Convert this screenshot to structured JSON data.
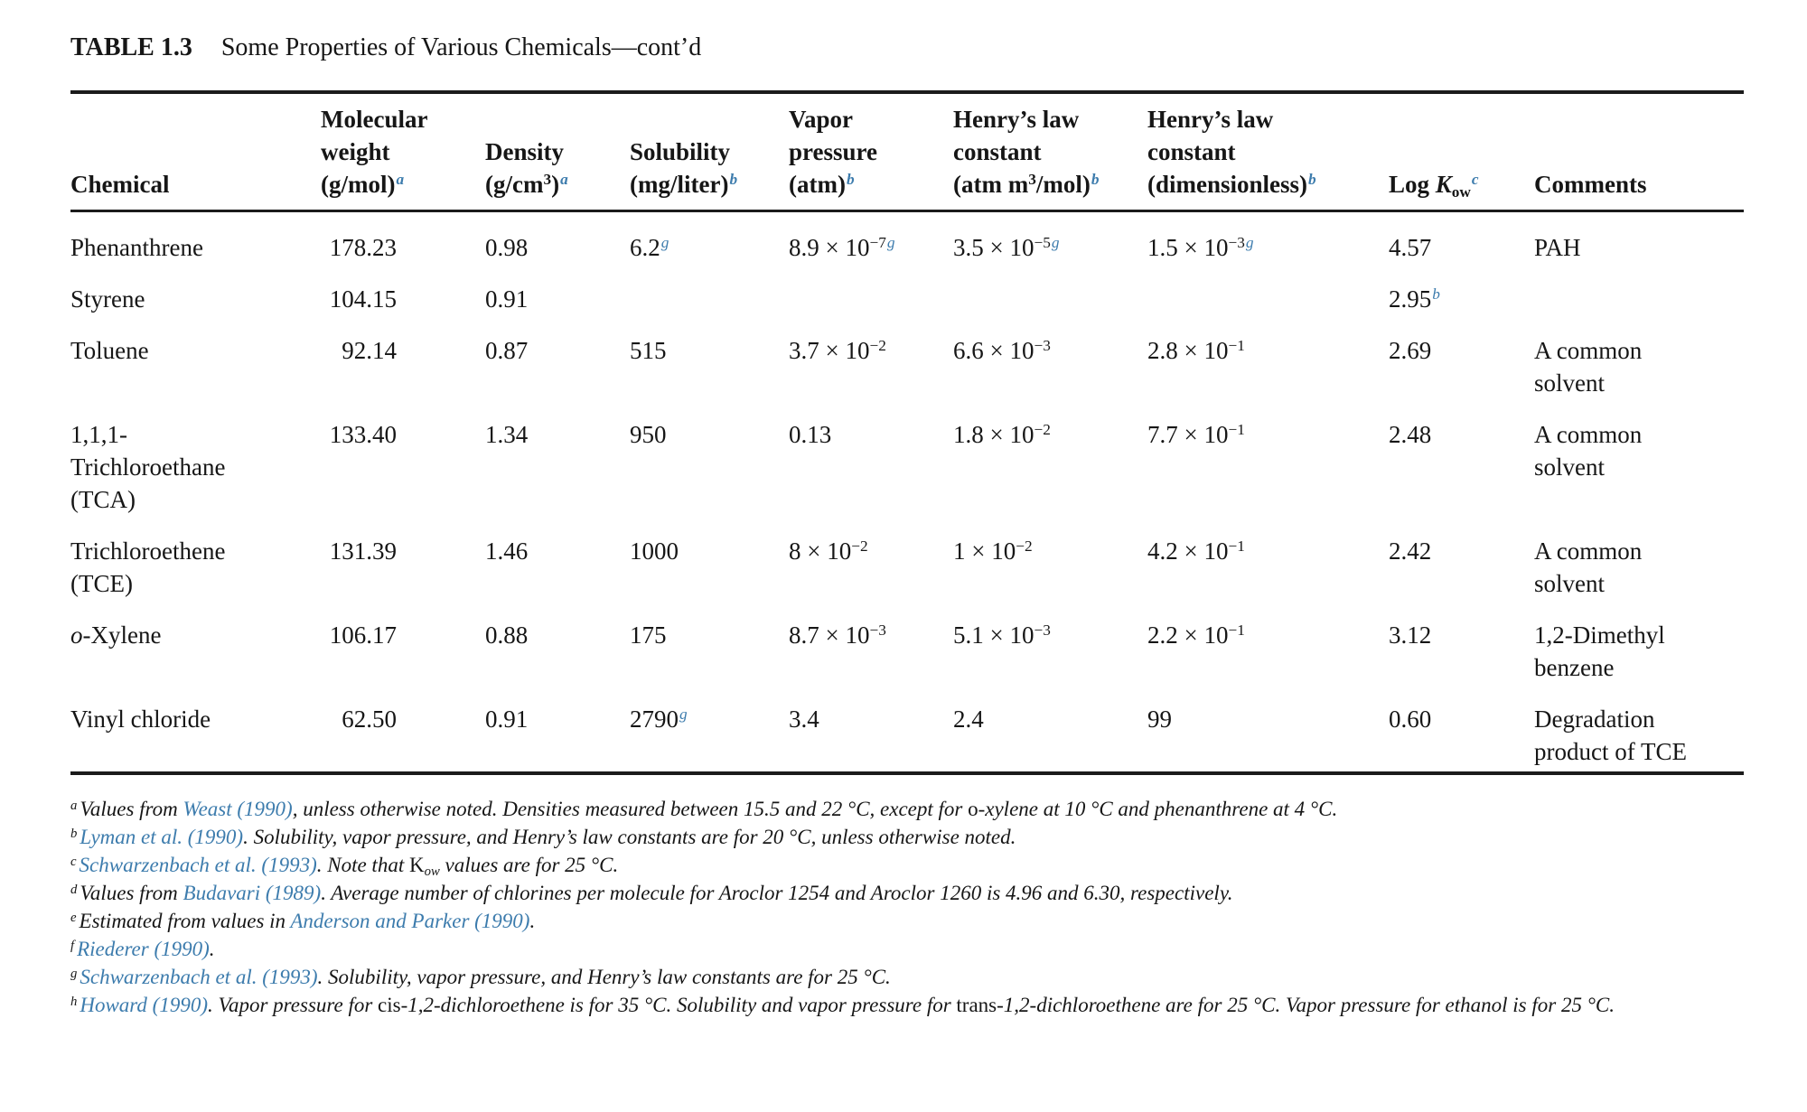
{
  "colors": {
    "accent": "#3d7cad",
    "rule": "#1b1b1b",
    "text": "#161616",
    "background": "#ffffff"
  },
  "title": {
    "label": "TABLE 1.3",
    "text": "Some Properties of Various Chemicals—cont’d"
  },
  "table": {
    "columns": [
      {
        "key": "chemical",
        "header": "Chemical"
      },
      {
        "key": "mw",
        "header": "Molecular\nweight\n(g/mol)~{a}"
      },
      {
        "key": "density",
        "header": "Density\n(g/cm^{3})~{a}"
      },
      {
        "key": "solubility",
        "header": "Solubility\n(mg/liter)~{b}"
      },
      {
        "key": "vp",
        "header": "Vapor\npressure\n(atm)~{b}"
      },
      {
        "key": "henry_atm",
        "header": "Henry’s law\nconstant\n(atm m^{3}/mol)~{b}"
      },
      {
        "key": "henry_dim",
        "header": "Henry’s law\nconstant\n(dimensionless)~{b}"
      },
      {
        "key": "logkow",
        "header": "Log *{K}_{ow}~{c}"
      },
      {
        "key": "comments",
        "header": "Comments"
      }
    ],
    "rows": [
      {
        "cells": {
          "chemical": "Phenanthrene",
          "mw": "178.23",
          "density": "0.98",
          "solubility": "6.2~{g}",
          "vp": "8.9 × 10^{−7}~{g}",
          "henry_atm": "3.5 × 10^{−5}~{g}",
          "henry_dim": "1.5 × 10^{−3}~{g}",
          "logkow": "4.57",
          "comments": "PAH"
        }
      },
      {
        "cells": {
          "chemical": "Styrene",
          "mw": "104.15",
          "density": "0.91",
          "solubility": "",
          "vp": "",
          "henry_atm": "",
          "henry_dim": "",
          "logkow": "2.95~{b}",
          "comments": ""
        }
      },
      {
        "cells": {
          "chemical": "Toluene",
          "mw": "92.14",
          "density": "0.87",
          "solubility": "515",
          "vp": "3.7 × 10^{−2}",
          "henry_atm": "6.6 × 10^{−3}",
          "henry_dim": "2.8 × 10^{−1}",
          "logkow": "2.69",
          "comments": "A common\nsolvent"
        }
      },
      {
        "cells": {
          "chemical": "1,1,1-\nTrichloroethane\n(TCA)",
          "mw": "133.40",
          "density": "1.34",
          "solubility": "950",
          "vp": "0.13",
          "henry_atm": "1.8 × 10^{−2}",
          "henry_dim": "7.7 × 10^{−1}",
          "logkow": "2.48",
          "comments": "A common\nsolvent"
        }
      },
      {
        "cells": {
          "chemical": "Trichloroethene\n(TCE)",
          "mw": "131.39",
          "density": "1.46",
          "solubility": "1000",
          "vp": "8 × 10^{−2}",
          "henry_atm": "1 × 10^{−2}",
          "henry_dim": "4.2 × 10^{−1}",
          "logkow": "2.42",
          "comments": "A common\nsolvent"
        }
      },
      {
        "cells": {
          "chemical": "*{o}-Xylene",
          "mw": "106.17",
          "density": "0.88",
          "solubility": "175",
          "vp": "8.7 × 10^{−3}",
          "henry_atm": "5.1 × 10^{−3}",
          "henry_dim": "2.2 × 10^{−1}",
          "logkow": "3.12",
          "comments": "1,2-Dimethyl\nbenzene"
        }
      },
      {
        "cells": {
          "chemical": "Vinyl chloride",
          "mw": "62.50",
          "density": "0.91",
          "solubility": "2790~{g}",
          "vp": "3.4",
          "henry_atm": "2.4",
          "henry_dim": "99",
          "logkow": "0.60",
          "comments": "Degradation\nproduct of TCE"
        }
      }
    ]
  },
  "footnotes": [
    {
      "marker": "a",
      "text": "Values from @{Weast (1990)}, unless otherwise noted. Densities measured between 15.5 and 22 °C, except for !{o}-xylene at 10 °C and phenanthrene at 4 °C."
    },
    {
      "marker": "b",
      "text": "@{Lyman et al. (1990)}. Solubility, vapor pressure, and Henry’s law constants are for 20 °C, unless otherwise noted."
    },
    {
      "marker": "c",
      "text": "@{Schwarzenbach et al. (1993)}. Note that !{K}_{ow} values are for 25 °C."
    },
    {
      "marker": "d",
      "text": "Values from @{Budavari (1989)}. Average number of chlorines per molecule for Aroclor 1254 and Aroclor 1260 is 4.96 and 6.30, respectively."
    },
    {
      "marker": "e",
      "text": "Estimated from values in @{Anderson and Parker (1990)}."
    },
    {
      "marker": "f",
      "text": "@{Riederer (1990)}."
    },
    {
      "marker": "g",
      "text": "@{Schwarzenbach et al. (1993)}. Solubility, vapor pressure, and Henry’s law constants are for 25 °C."
    },
    {
      "marker": "h",
      "text": "@{Howard (1990)}. Vapor pressure for !{cis}-1,2-dichloroethene is for 35 °C. Solubility and vapor pressure for !{trans}-1,2-dichloroethene are for 25 °C. Vapor pressure for ethanol is for 25 °C."
    }
  ]
}
